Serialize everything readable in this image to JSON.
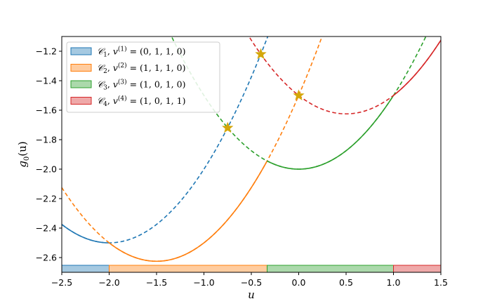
{
  "chart_data": {
    "type": "line",
    "xlabel": "u",
    "ylabel": "g0(u)",
    "xlabel_parts": {
      "base": "u"
    },
    "ylabel_parts": {
      "fn": "g",
      "sub": "0",
      "arg": "(u)"
    },
    "xlim": [
      -2.5,
      1.5
    ],
    "ylim": [
      -2.7,
      -1.1
    ],
    "xticks": [
      -2.5,
      -2.0,
      -1.5,
      -1.0,
      -0.5,
      0.0,
      0.5,
      1.0,
      1.5
    ],
    "xtick_labels": [
      "−2.5",
      "−2.0",
      "−1.5",
      "−1.0",
      "−0.5",
      "0.0",
      "0.5",
      "1.0",
      "1.5"
    ],
    "yticks": [
      -2.6,
      -2.4,
      -2.2,
      -2.0,
      -1.8,
      -1.6,
      -1.4,
      -1.2
    ],
    "ytick_labels": [
      "−2.6",
      "−2.4",
      "−2.2",
      "−2.0",
      "−1.8",
      "−1.6",
      "−1.4",
      "−1.2"
    ],
    "grid": false,
    "legend_position": "top-left",
    "series": [
      {
        "name": "C1, v(1) = (0, 1, 1, 0)",
        "label": {
          "cal": "𝒞",
          "idx": "1",
          "sup": "(1)",
          "vec": " = (0, 1, 1, 0)"
        },
        "color": "#1f77b4",
        "vertex": [
          -2.0,
          -2.5
        ],
        "curvature": 0.5,
        "solid_range": [
          -2.5,
          -2.0
        ],
        "region": [
          -2.5,
          -2.0
        ]
      },
      {
        "name": "C2, v(2) = (1, 1, 1, 0)",
        "label": {
          "cal": "𝒞",
          "idx": "2",
          "sup": "(2)",
          "vec": " = (1, 1, 1, 0)"
        },
        "color": "#ff7f0e",
        "vertex": [
          -1.5,
          -2.625
        ],
        "curvature": 0.5,
        "solid_range": [
          -2.0,
          -0.333
        ],
        "region": [
          -2.0,
          -0.333
        ]
      },
      {
        "name": "C3, v(3) = (1, 0, 1, 0)",
        "label": {
          "cal": "𝒞",
          "idx": "3",
          "sup": "(3)",
          "vec": " = (1, 0, 1, 0)"
        },
        "color": "#2ca02c",
        "vertex": [
          0.0,
          -2.0
        ],
        "curvature": 0.5,
        "solid_range": [
          -0.333,
          1.0
        ],
        "region": [
          -0.333,
          1.0
        ]
      },
      {
        "name": "C4, v(4) = (1, 0, 1, 1)",
        "label": {
          "cal": "𝒞",
          "idx": "4",
          "sup": "(4)",
          "vec": " = (1, 0, 1, 1)"
        },
        "color": "#d62728",
        "vertex": [
          0.5,
          -1.625
        ],
        "curvature": 0.5,
        "solid_range": [
          1.0,
          1.5
        ],
        "region": [
          1.0,
          1.5
        ]
      }
    ],
    "markers": [
      {
        "x": -0.75,
        "y": -1.72
      },
      {
        "x": -0.4,
        "y": -1.22
      },
      {
        "x": 0.0,
        "y": -1.5
      }
    ],
    "marker_color": "#d4a70a"
  }
}
